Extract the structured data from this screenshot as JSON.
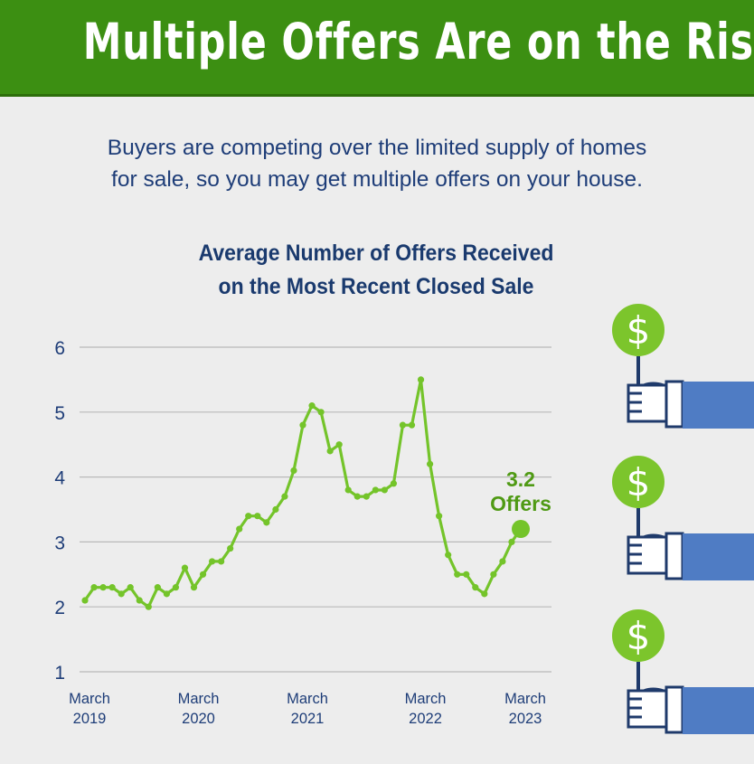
{
  "header": {
    "title": "Multiple Offers Are on the Rise"
  },
  "subtitle": {
    "line1": "Buyers are competing over the limited supply of homes",
    "line2": "for sale, so you may get multiple offers on your house."
  },
  "colors": {
    "banner": "#3c8f12",
    "line": "#74c42a",
    "annotation": "#4f9a14",
    "text_blue": "#1e3d78",
    "sleeve": "#4f7cc4"
  },
  "chart_data": {
    "type": "line",
    "title": "Average Number of Offers Received on the Most Recent Closed Sale",
    "title_lines": [
      "Average Number of Offers Received",
      "on the Most Recent Closed Sale"
    ],
    "xlabel": "",
    "ylabel": "",
    "ylim": [
      1,
      6
    ],
    "yticks": [
      "1",
      "2",
      "3",
      "4",
      "5",
      "6"
    ],
    "grid": true,
    "xticks": [
      {
        "index": 0,
        "line1": "March",
        "line2": "2019"
      },
      {
        "index": 12,
        "line1": "March",
        "line2": "2020"
      },
      {
        "index": 24,
        "line1": "March",
        "line2": "2021"
      },
      {
        "index": 37,
        "line1": "March",
        "line2": "2022"
      },
      {
        "index": 48,
        "line1": "March",
        "line2": "2023"
      }
    ],
    "series": [
      {
        "name": "Average Number of Offers",
        "values": [
          2.1,
          2.3,
          2.3,
          2.3,
          2.2,
          2.3,
          2.1,
          2.0,
          2.3,
          2.2,
          2.3,
          2.6,
          2.3,
          2.5,
          2.7,
          2.7,
          2.9,
          3.2,
          3.4,
          3.4,
          3.3,
          3.5,
          3.7,
          4.1,
          4.8,
          5.1,
          5.0,
          4.4,
          4.5,
          3.8,
          3.7,
          3.7,
          3.8,
          3.8,
          3.9,
          4.8,
          4.8,
          5.5,
          4.2,
          3.4,
          2.8,
          2.5,
          2.5,
          2.3,
          2.2,
          2.5,
          2.7,
          3.0,
          3.2
        ]
      }
    ],
    "annotation": {
      "value": "3.2",
      "label": "Offers"
    }
  },
  "illustration": {
    "icon_count": 3
  }
}
